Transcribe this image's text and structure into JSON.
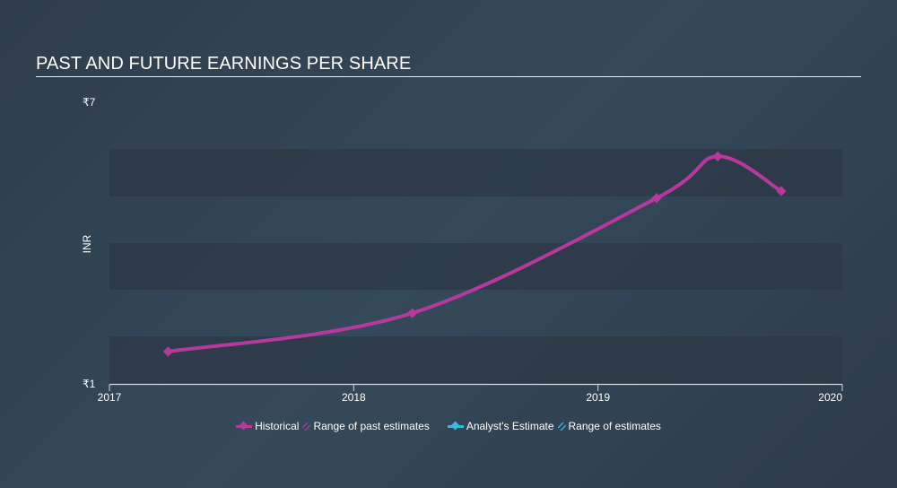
{
  "title": "PAST AND FUTURE EARNINGS PER SHARE",
  "colors": {
    "historical": "#b7399e",
    "analyst": "#3fb6dc",
    "axis": "#cdd6de",
    "band": "#2d3a48"
  },
  "axis": {
    "y_label": "INR",
    "y_ticks": [
      "₹7",
      "₹1"
    ],
    "x_ticks": [
      "2017",
      "2018",
      "2019",
      "2020"
    ]
  },
  "legend": {
    "items": [
      {
        "label": "Historical",
        "icon": "diamond-line-icon",
        "color": "#b7399e"
      },
      {
        "label": "Range of past estimates",
        "icon": "hatch-icon",
        "color": "#b7399e"
      },
      {
        "label": "Analyst's Estimate",
        "icon": "diamond-line-icon",
        "color": "#3fb6dc"
      },
      {
        "label": "Range of estimates",
        "icon": "hatch-icon",
        "color": "#3fb6dc"
      }
    ]
  },
  "chart_data": {
    "type": "line",
    "title": "PAST AND FUTURE EARNINGS PER SHARE",
    "xlabel": "",
    "ylabel": "INR",
    "ylim": [
      1,
      7
    ],
    "xlim": [
      2017,
      2020
    ],
    "x_tick_labels": [
      "2017",
      "2018",
      "2019",
      "2020"
    ],
    "y_tick_labels": [
      "₹7",
      "₹1"
    ],
    "grid": "horizontal alternating bands",
    "legend_position": "bottom",
    "series": [
      {
        "name": "Historical",
        "color": "#b7399e",
        "x": [
          2017.24,
          2018.24,
          2019.24,
          2019.49,
          2019.75
        ],
        "values": [
          1.67,
          2.49,
          4.94,
          5.83,
          5.09
        ]
      },
      {
        "name": "Analyst's Estimate",
        "color": "#3fb6dc",
        "x": [],
        "values": []
      }
    ],
    "legend": [
      "Historical",
      "Range of past estimates",
      "Analyst's Estimate",
      "Range of estimates"
    ]
  }
}
